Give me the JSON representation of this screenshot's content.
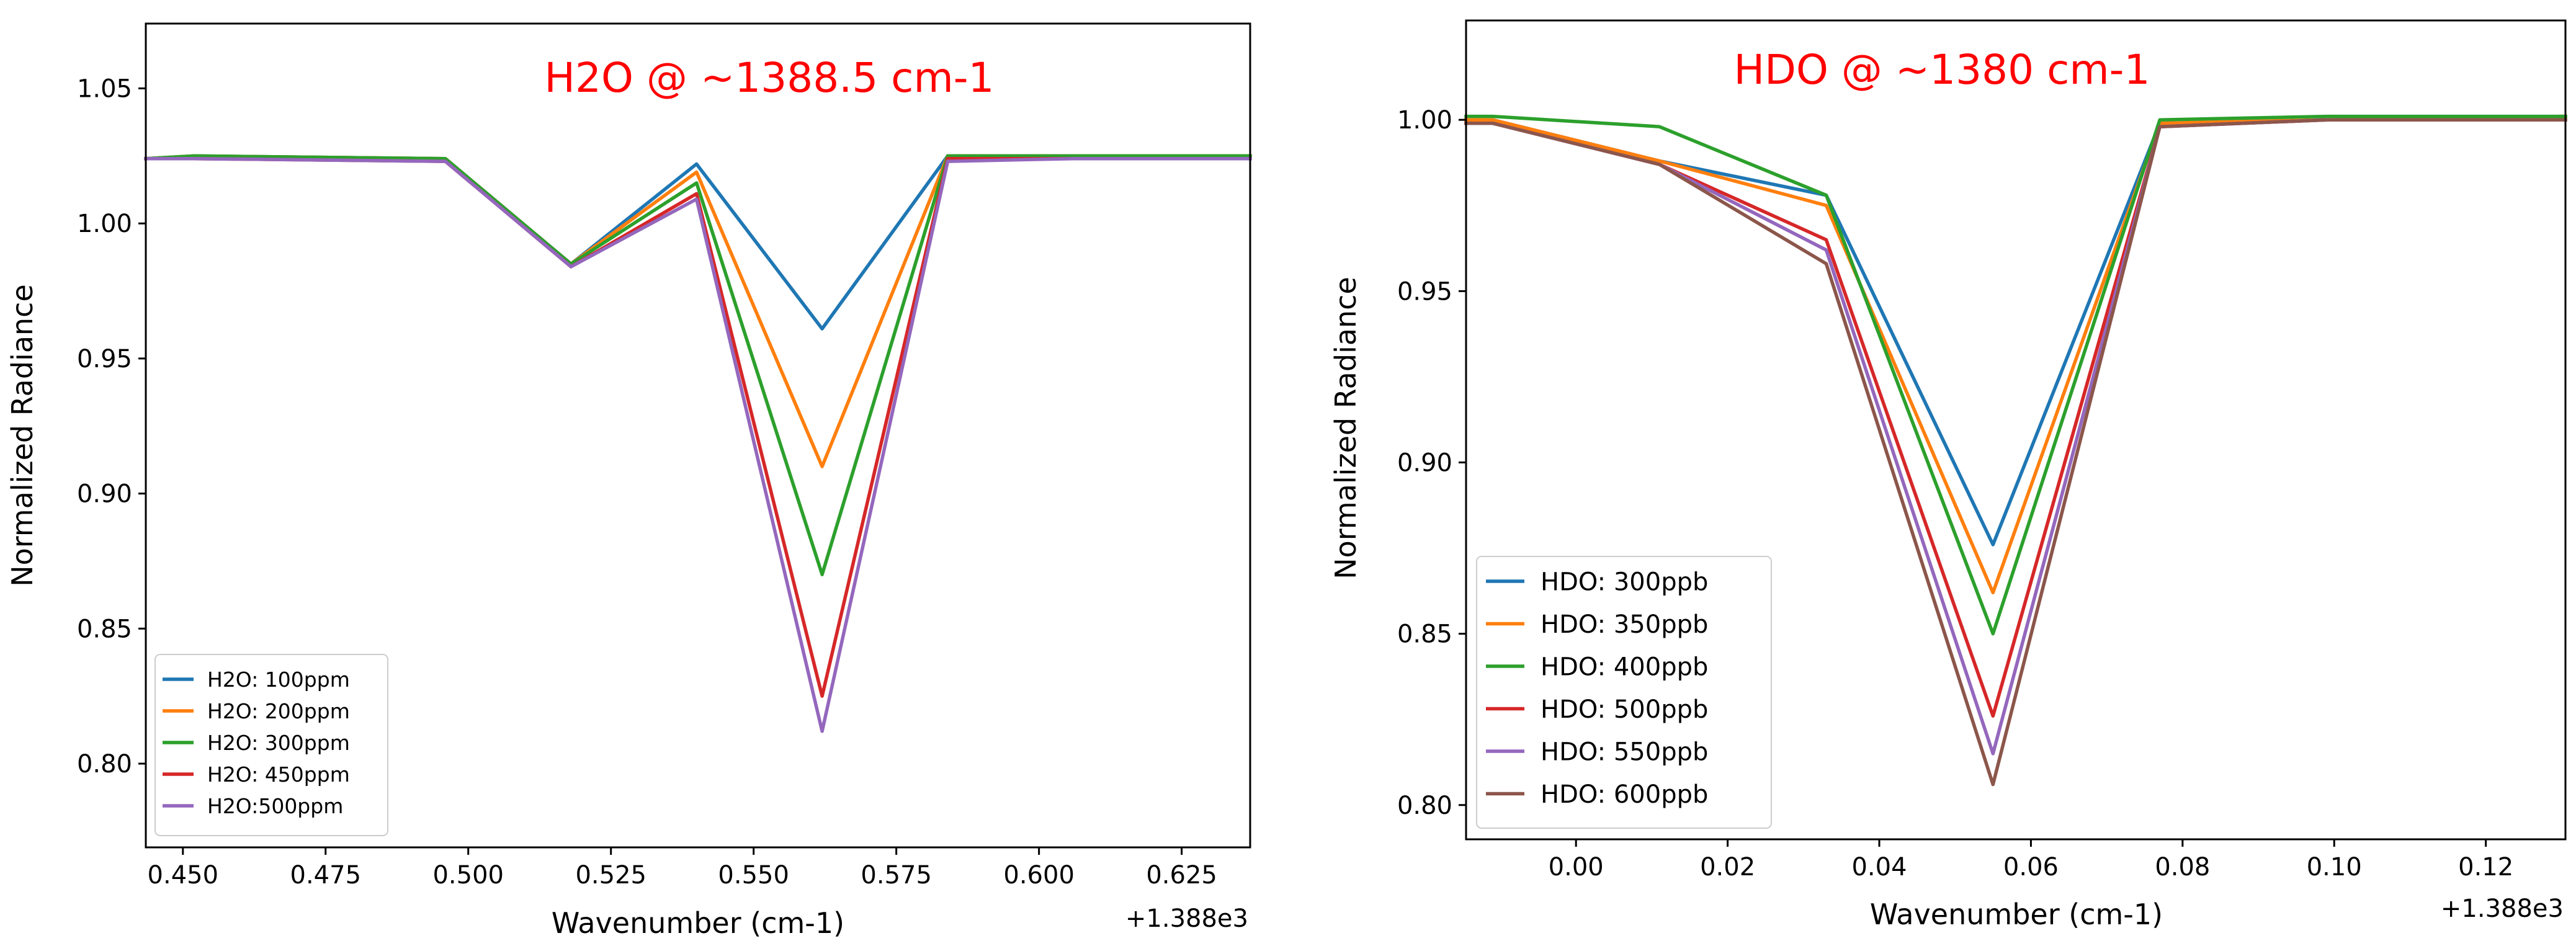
{
  "chart_data": [
    {
      "type": "line",
      "title": "",
      "annotation": "H2O @ ~1388.5 cm-1",
      "annotation_color": "#ff0000",
      "xlabel": "Wavenumber (cm-1)",
      "ylabel": "Normalized Radiance",
      "x_offset_label": "+1.388e3",
      "xlim": [
        0.4435,
        0.637
      ],
      "ylim": [
        0.769,
        1.074
      ],
      "xticks": [
        0.45,
        0.475,
        0.5,
        0.525,
        0.55,
        0.575,
        0.6,
        0.625
      ],
      "xtick_labels": [
        "0.450",
        "0.475",
        "0.500",
        "0.525",
        "0.550",
        "0.575",
        "0.600",
        "0.625"
      ],
      "yticks": [
        0.8,
        0.85,
        0.9,
        0.95,
        1.0,
        1.05
      ],
      "ytick_labels": [
        "0.80",
        "0.85",
        "0.90",
        "0.95",
        "1.00",
        "1.05"
      ],
      "grid": false,
      "legend_position": "lower-left",
      "x": [
        0.4435,
        0.452,
        0.496,
        0.518,
        0.54,
        0.562,
        0.584,
        0.606,
        0.637
      ],
      "series": [
        {
          "name": "H2O: 100ppm",
          "color": "#1f77b4",
          "values": [
            1.024,
            1.025,
            1.024,
            0.985,
            1.022,
            0.961,
            1.025,
            1.025,
            1.025
          ]
        },
        {
          "name": "H2O: 200ppm",
          "color": "#ff7f0e",
          "values": [
            1.024,
            1.025,
            1.024,
            0.985,
            1.019,
            0.91,
            1.025,
            1.025,
            1.025
          ]
        },
        {
          "name": "H2O: 300ppm",
          "color": "#2ca02c",
          "values": [
            1.024,
            1.025,
            1.024,
            0.985,
            1.015,
            0.87,
            1.025,
            1.025,
            1.025
          ]
        },
        {
          "name": "H2O: 450ppm",
          "color": "#d62728",
          "values": [
            1.024,
            1.024,
            1.023,
            0.984,
            1.011,
            0.825,
            1.024,
            1.024,
            1.024
          ]
        },
        {
          "name": "H2O:500ppm",
          "color": "#9467bd",
          "values": [
            1.024,
            1.024,
            1.023,
            0.984,
            1.009,
            0.812,
            1.023,
            1.024,
            1.024
          ]
        }
      ]
    },
    {
      "type": "line",
      "title": "",
      "annotation": "HDO @ ~1380 cm-1",
      "annotation_color": "#ff0000",
      "xlabel": "Wavenumber (cm-1)",
      "ylabel": "Normalized Radiance",
      "x_offset_label": "+1.388e3",
      "xlim": [
        -0.0145,
        0.1305
      ],
      "ylim": [
        0.79,
        1.029
      ],
      "xticks": [
        0.0,
        0.02,
        0.04,
        0.06,
        0.08,
        0.1,
        0.12
      ],
      "xtick_labels": [
        "0.00",
        "0.02",
        "0.04",
        "0.06",
        "0.08",
        "0.10",
        "0.12"
      ],
      "yticks": [
        0.8,
        0.85,
        0.9,
        0.95,
        1.0
      ],
      "ytick_labels": [
        "0.80",
        "0.85",
        "0.90",
        "0.95",
        "1.00"
      ],
      "grid": false,
      "legend_position": "lower-left",
      "x": [
        -0.0145,
        -0.011,
        0.011,
        0.033,
        0.055,
        0.077,
        0.099,
        0.1305
      ],
      "series": [
        {
          "name": "HDO: 300ppb",
          "color": "#1f77b4",
          "values": [
            1.0,
            1.0,
            0.988,
            0.978,
            0.876,
            0.999,
            1.0,
            1.001
          ]
        },
        {
          "name": "HDO: 350ppb",
          "color": "#ff7f0e",
          "values": [
            1.0,
            1.0,
            0.988,
            0.975,
            0.862,
            0.999,
            1.0,
            1.001
          ]
        },
        {
          "name": "HDO: 400ppb",
          "color": "#2ca02c",
          "values": [
            1.001,
            1.001,
            0.998,
            0.978,
            0.85,
            1.0,
            1.001,
            1.001
          ]
        },
        {
          "name": "HDO: 500ppb",
          "color": "#d62728",
          "values": [
            0.999,
            0.999,
            0.987,
            0.965,
            0.826,
            0.998,
            1.0,
            1.0
          ]
        },
        {
          "name": "HDO: 550ppb",
          "color": "#9467bd",
          "values": [
            0.999,
            0.999,
            0.987,
            0.962,
            0.815,
            0.998,
            1.0,
            1.0
          ]
        },
        {
          "name": "HDO: 600ppb",
          "color": "#8c564b",
          "values": [
            0.999,
            0.999,
            0.987,
            0.958,
            0.806,
            0.998,
            1.0,
            1.0
          ]
        }
      ]
    }
  ]
}
